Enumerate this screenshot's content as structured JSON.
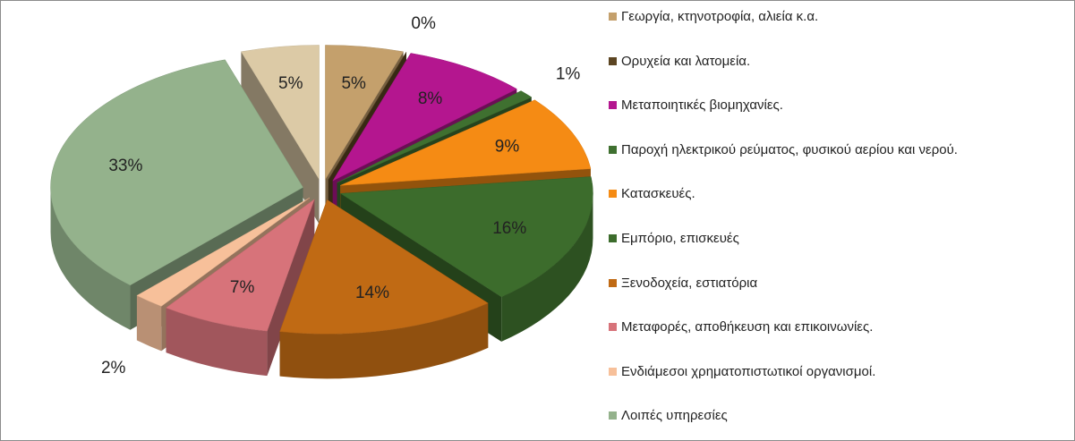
{
  "chart_data": {
    "type": "pie3d",
    "categories": [
      "Γεωργία, κτηνοτροφία, αλιεία κ.α.",
      "Ορυχεία και λατομεία.",
      "Μεταποιητικές βιομηχανίες.",
      "Παροχή ηλεκτρικού ρεύματος, φυσικού αερίου και νερού.",
      "Κατασκευές.",
      "Εμπόριο, επισκευές",
      "Ξενοδοχεία, εστιατόρια",
      "Μεταφορές, αποθήκευση και επικοινωνίες.",
      "Ενδιάμεσοι χρηματοπιστωτικοί οργανισμοί.",
      "Λοιπές υπηρεσίες",
      null
    ],
    "values": [
      5,
      0,
      8,
      1,
      9,
      16,
      14,
      7,
      2,
      33,
      5
    ],
    "value_labels": [
      "5%",
      "0%",
      "8%",
      "1%",
      "9%",
      "16%",
      "14%",
      "7%",
      "2%",
      "33%",
      "5%"
    ],
    "colors": [
      "#c4a06c",
      "#5c4522",
      "#b4168f",
      "#3f7030",
      "#f58b14",
      "#3c6c2c",
      "#c06a14",
      "#d7737a",
      "#f7c09a",
      "#94b28c",
      "#dccaa6"
    ],
    "legend": "right"
  }
}
